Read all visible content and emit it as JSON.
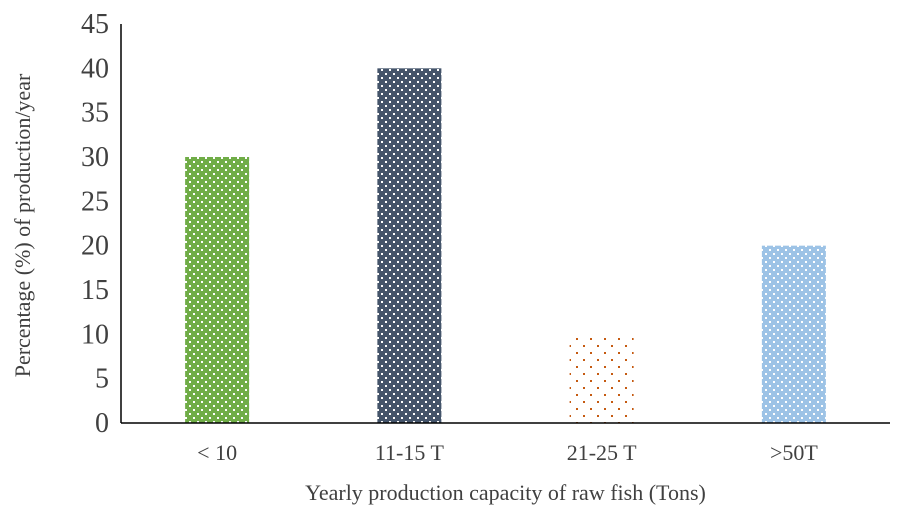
{
  "chart_data": {
    "type": "bar",
    "categories": [
      "< 10",
      "11-15 T",
      "21-25 T",
      ">50T"
    ],
    "values": [
      30,
      40,
      10,
      20
    ],
    "title": "",
    "xlabel": "Yearly production capacity of raw fish (Tons)",
    "ylabel": "Percentage (%) of production/year",
    "ylim": [
      0,
      45
    ],
    "yticks": [
      "0",
      "5",
      "10",
      "15",
      "20",
      "25",
      "30",
      "35",
      "40",
      "45"
    ],
    "grid": false,
    "legend": "none",
    "bar_colors": [
      "#70ad47",
      "#44546a",
      "#c55a11",
      "#9dc3e6"
    ],
    "bar_patterns": [
      "lattice",
      "lattice",
      "dots",
      "lattice"
    ]
  }
}
